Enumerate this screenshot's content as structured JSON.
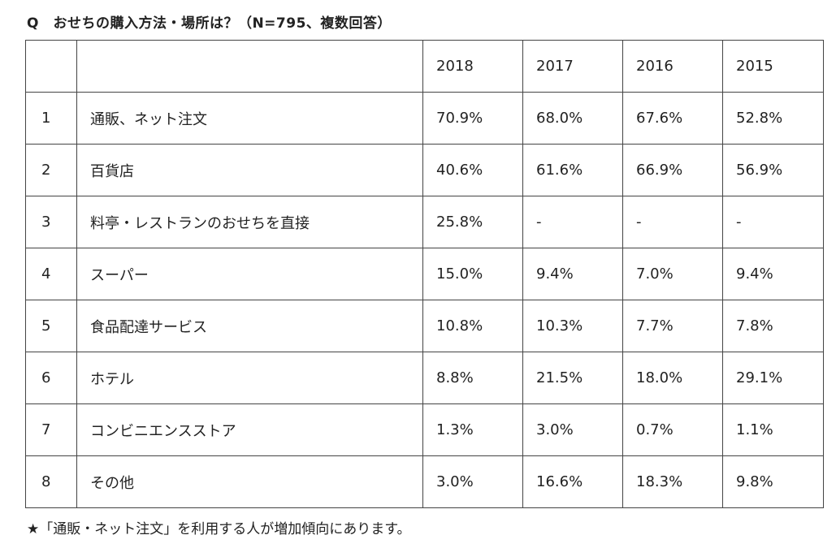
{
  "title": "Q　おせちの購入方法・場所は？（N=795、複数回答）",
  "table": {
    "headers": [
      "",
      "",
      "2018",
      "2017",
      "2016",
      "2015"
    ],
    "rows": [
      {
        "rank": "1",
        "method": "通販、ネット注文",
        "values": [
          "70.9%",
          "68.0%",
          "67.6%",
          "52.8%"
        ]
      },
      {
        "rank": "2",
        "method": "百貨店",
        "values": [
          "40.6%",
          "61.6%",
          "66.9%",
          "56.9%"
        ]
      },
      {
        "rank": "3",
        "method": "料亭・レストランのおせちを直接",
        "values": [
          "25.8%",
          "-",
          "-",
          "-"
        ]
      },
      {
        "rank": "4",
        "method": "スーパー",
        "values": [
          "15.0%",
          "9.4%",
          "7.0%",
          "9.4%"
        ]
      },
      {
        "rank": "5",
        "method": "食品配達サービス",
        "values": [
          "10.8%",
          "10.3%",
          "7.7%",
          "7.8%"
        ]
      },
      {
        "rank": "6",
        "method": "ホテル",
        "values": [
          "8.8%",
          "21.5%",
          "18.0%",
          "29.1%"
        ]
      },
      {
        "rank": "7",
        "method": "コンビニエンスストア",
        "values": [
          "1.3%",
          "3.0%",
          "0.7%",
          "1.1%"
        ]
      },
      {
        "rank": "8",
        "method": "その他",
        "values": [
          "3.0%",
          "16.6%",
          "18.3%",
          "9.8%"
        ]
      }
    ]
  },
  "note": "★「通販・ネット注文」を利用する人が増加傾向にあります。"
}
